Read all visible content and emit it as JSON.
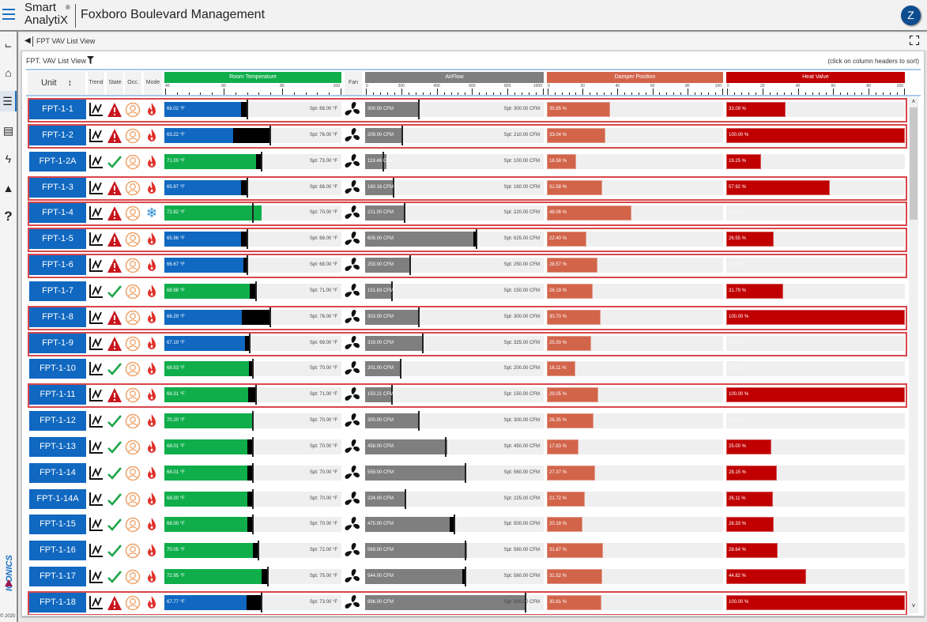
{
  "app": {
    "logo_line1": "Smart",
    "logo_reg": "®",
    "logo_line2": "AnalytiX",
    "title": "Foxboro Boulevard Management",
    "avatar": "Z"
  },
  "sidebar": {
    "items": [
      {
        "icon": "hierarchy-icon"
      },
      {
        "icon": "home-icon"
      },
      {
        "icon": "list-icon",
        "selected": true
      },
      {
        "icon": "panel-icon"
      },
      {
        "icon": "lightning-icon"
      },
      {
        "icon": "alarm-icon"
      },
      {
        "icon": "help-icon"
      }
    ],
    "brand": "ICONICS",
    "copyright": "© 2020"
  },
  "breadcrumb": {
    "label": "FPT VAV List View"
  },
  "view": {
    "title": "FPT. VAV List View",
    "sort_hint": "(click on column headers to sort)"
  },
  "columns": {
    "unit": "Unit",
    "trend": "Trend",
    "state": "State",
    "occ": "Occ.",
    "mode": "Mode",
    "room_temp": "Room Temperature",
    "fan": "Fan",
    "airflow": "AirFlow",
    "damper": "Damper Position",
    "heat": "Heat Valve"
  },
  "scales": {
    "room_temp": {
      "min": 40,
      "max": 100,
      "labels": [
        "40",
        "60",
        "80",
        "100"
      ]
    },
    "airflow": {
      "min": 0,
      "max": 1000,
      "labels": [
        "0",
        "200",
        "400",
        "600",
        "800",
        "1000"
      ]
    },
    "damper": {
      "min": 0,
      "max": 100,
      "labels": [
        "0",
        "20",
        "40",
        "60",
        "80",
        "100"
      ]
    },
    "heat": {
      "min": 0,
      "max": 100,
      "labels": [
        "0",
        "20",
        "40",
        "60",
        "80",
        "100"
      ]
    }
  },
  "colors": {
    "cold": "#1068c0",
    "ok": "#0fae4b",
    "airflow": "#7f7f7f",
    "damper": "#d2644a",
    "heat": "#c00000",
    "alarm_border": "#d9474b"
  },
  "rows": [
    {
      "unit": "FPT-1-1",
      "alarm": true,
      "mode": "heat",
      "temp_state": "cold",
      "temp": 66.02,
      "temp_label": "66.02 °F",
      "temp_spt": 68,
      "temp_spt_label": "Spt: 68.00 °F",
      "air": 300,
      "air_label": "300.00 CFM",
      "air_spt": 300,
      "air_spt_label": "Spt: 300.00 CFM",
      "damper": 35.85,
      "damper_label": "35.85 %",
      "heat": 33.09,
      "heat_label": "33.09 %"
    },
    {
      "unit": "FPT-1-2",
      "alarm": true,
      "mode": "heat",
      "temp_state": "cold",
      "temp": 63.22,
      "temp_label": "63.22 °F",
      "temp_spt": 76,
      "temp_spt_label": "Spt: 76.00 °F",
      "air": 209,
      "air_label": "209.00 CFM",
      "air_spt": 210,
      "air_spt_label": "Spt: 210.00 CFM",
      "damper": 33.04,
      "damper_label": "33.04 %",
      "heat": 100,
      "heat_label": "100.00 %"
    },
    {
      "unit": "FPT-1-2A",
      "alarm": false,
      "mode": "heat",
      "temp_state": "ok",
      "temp": 71.0,
      "temp_label": "71.00 °F",
      "temp_spt": 73,
      "temp_spt_label": "Spt: 73.00 °F",
      "air": 119.46,
      "air_label": "119.46 CFM",
      "air_spt": 100,
      "air_spt_label": "Spt: 100.00 CFM",
      "damper": 16.58,
      "damper_label": "16.58 %",
      "heat": 19.25,
      "heat_label": "19.25 %"
    },
    {
      "unit": "FPT-1-3",
      "alarm": true,
      "mode": "heat",
      "temp_state": "cold",
      "temp": 65.97,
      "temp_label": "65.97 °F",
      "temp_spt": 68,
      "temp_spt_label": "Spt: 68.00 °F",
      "air": 160.16,
      "air_label": "160.16 CFM",
      "air_spt": 160,
      "air_spt_label": "Spt: 160.00 CFM",
      "damper": 31.58,
      "damper_label": "31.58 %",
      "heat": 57.92,
      "heat_label": "57.92 %"
    },
    {
      "unit": "FPT-1-4",
      "alarm": true,
      "mode": "cool",
      "temp_state": "ok",
      "temp": 72.82,
      "temp_label": "72.82 °F",
      "temp_spt": 70,
      "temp_spt_label": "Spt: 70.00 °F",
      "air": 221,
      "air_label": "221.00 CFM",
      "air_spt": 220,
      "air_spt_label": "Spt: 220.00 CFM",
      "damper": 48.06,
      "damper_label": "48.06 %",
      "heat": 0,
      "heat_label": "0.00 %"
    },
    {
      "unit": "FPT-1-5",
      "alarm": true,
      "mode": "heat",
      "temp_state": "cold",
      "temp": 65.96,
      "temp_label": "65.96 °F",
      "temp_spt": 68,
      "temp_spt_label": "Spt: 68.00 °F",
      "air": 605,
      "air_label": "605.00 CFM",
      "air_spt": 625,
      "air_spt_label": "Spt: 625.00 CFM",
      "damper": 22.4,
      "damper_label": "22.40 %",
      "heat": 26.55,
      "heat_label": "26.55 %"
    },
    {
      "unit": "FPT-1-6",
      "alarm": true,
      "mode": "heat",
      "temp_state": "cold",
      "temp": 66.67,
      "temp_label": "66.67 °F",
      "temp_spt": 68,
      "temp_spt_label": "Spt: 68.00 °F",
      "air": 253,
      "air_label": "253.00 CFM",
      "air_spt": 250,
      "air_spt_label": "Spt: 250.00 CFM",
      "damper": 28.57,
      "damper_label": "28.57 %",
      "heat": 0,
      "heat_label": "0.00 %"
    },
    {
      "unit": "FPT-1-7",
      "alarm": false,
      "mode": "heat",
      "temp_state": "ok",
      "temp": 68.98,
      "temp_label": "68.98 °F",
      "temp_spt": 71,
      "temp_spt_label": "Spt: 71.00 °F",
      "air": 151.83,
      "air_label": "151.83 CFM",
      "air_spt": 150,
      "air_spt_label": "Spt: 150.00 CFM",
      "damper": 26.19,
      "damper_label": "26.19 %",
      "heat": 31.79,
      "heat_label": "31.79 %"
    },
    {
      "unit": "FPT-1-8",
      "alarm": true,
      "mode": "heat",
      "temp_state": "cold",
      "temp": 66.29,
      "temp_label": "66.29 °F",
      "temp_spt": 76,
      "temp_spt_label": "Spt: 76.00 °F",
      "air": 303,
      "air_label": "303.00 CFM",
      "air_spt": 300,
      "air_spt_label": "Spt: 300.00 CFM",
      "damper": 30.7,
      "damper_label": "30.70 %",
      "heat": 100,
      "heat_label": "100.00 %"
    },
    {
      "unit": "FPT-1-9",
      "alarm": true,
      "mode": "heat",
      "temp_state": "cold",
      "temp": 67.19,
      "temp_label": "67.19 °F",
      "temp_spt": 69,
      "temp_spt_label": "Spt: 69.00 °F",
      "air": 319,
      "air_label": "319.00 CFM",
      "air_spt": 325,
      "air_spt_label": "Spt: 325.00 CFM",
      "damper": 25.0,
      "damper_label": "25.00 %",
      "heat": 0,
      "heat_label": "0.00 %"
    },
    {
      "unit": "FPT-1-10",
      "alarm": false,
      "mode": "heat",
      "temp_state": "ok",
      "temp": 68.53,
      "temp_label": "68.53 °F",
      "temp_spt": 70,
      "temp_spt_label": "Spt: 70.00 °F",
      "air": 201,
      "air_label": "201.00 CFM",
      "air_spt": 200,
      "air_spt_label": "Spt: 200.00 CFM",
      "damper": 16.11,
      "damper_label": "16.11 %",
      "heat": 0,
      "heat_label": "0.00 %"
    },
    {
      "unit": "FPT-1-11",
      "alarm": true,
      "mode": "heat",
      "temp_state": "ok",
      "temp": 68.31,
      "temp_label": "68.31 °F",
      "temp_spt": 71,
      "temp_spt_label": "Spt: 71.00 °F",
      "air": 150.21,
      "air_label": "150.21 CFM",
      "air_spt": 150,
      "air_spt_label": "Spt: 150.00 CFM",
      "damper": 29.05,
      "damper_label": "29.05 %",
      "heat": 100,
      "heat_label": "100.00 %"
    },
    {
      "unit": "FPT-1-12",
      "alarm": false,
      "mode": "heat",
      "temp_state": "ok",
      "temp": 70.2,
      "temp_label": "70.20 °F",
      "temp_spt": 70,
      "temp_spt_label": "Spt: 70.00 °F",
      "air": 300,
      "air_label": "300.00 CFM",
      "air_spt": 300,
      "air_spt_label": "Spt: 300.00 CFM",
      "damper": 26.35,
      "damper_label": "26.35 %",
      "heat": 0,
      "heat_label": "0.00 %"
    },
    {
      "unit": "FPT-1-13",
      "alarm": false,
      "mode": "heat",
      "temp_state": "ok",
      "temp": 68.01,
      "temp_label": "68.01 °F",
      "temp_spt": 70,
      "temp_spt_label": "Spt: 70.00 °F",
      "air": 458,
      "air_label": "458.00 CFM",
      "air_spt": 450,
      "air_spt_label": "Spt: 450.00 CFM",
      "damper": 17.83,
      "damper_label": "17.83 %",
      "heat": 25.0,
      "heat_label": "25.00 %"
    },
    {
      "unit": "FPT-1-14",
      "alarm": false,
      "mode": "heat",
      "temp_state": "ok",
      "temp": 68.01,
      "temp_label": "68.01 °F",
      "temp_spt": 70,
      "temp_spt_label": "Spt: 70.00 °F",
      "air": 559,
      "air_label": "559.00 CFM",
      "air_spt": 560,
      "air_spt_label": "Spt: 560.00 CFM",
      "damper": 27.37,
      "damper_label": "27.37 %",
      "heat": 28.15,
      "heat_label": "28.15 %"
    },
    {
      "unit": "FPT-1-14A",
      "alarm": false,
      "mode": "heat",
      "temp_state": "ok",
      "temp": 68.0,
      "temp_label": "68.00 °F",
      "temp_spt": 70,
      "temp_spt_label": "Spt: 70.00 °F",
      "air": 224,
      "air_label": "224.00 CFM",
      "air_spt": 225,
      "air_spt_label": "Spt: 225.00 CFM",
      "damper": 21.72,
      "damper_label": "21.72 %",
      "heat": 26.11,
      "heat_label": "26.11 %"
    },
    {
      "unit": "FPT-1-15",
      "alarm": false,
      "mode": "heat",
      "temp_state": "ok",
      "temp": 68.0,
      "temp_label": "68.00 °F",
      "temp_spt": 70,
      "temp_spt_label": "Spt: 70.00 °F",
      "air": 475,
      "air_label": "475.00 CFM",
      "air_spt": 500,
      "air_spt_label": "Spt: 500.00 CFM",
      "damper": 20.18,
      "damper_label": "20.18 %",
      "heat": 26.33,
      "heat_label": "26.33 %"
    },
    {
      "unit": "FPT-1-16",
      "alarm": false,
      "mode": "heat",
      "temp_state": "ok",
      "temp": 70.05,
      "temp_label": "70.05 °F",
      "temp_spt": 72,
      "temp_spt_label": "Spt: 72.00 °F",
      "air": 569,
      "air_label": "569.00 CFM",
      "air_spt": 560,
      "air_spt_label": "Spt: 560.00 CFM",
      "damper": 31.87,
      "damper_label": "31.87 %",
      "heat": 28.64,
      "heat_label": "28.64 %"
    },
    {
      "unit": "FPT-1-17",
      "alarm": false,
      "mode": "heat",
      "temp_state": "ok",
      "temp": 72.95,
      "temp_label": "72.95 °F",
      "temp_spt": 75,
      "temp_spt_label": "Spt: 75.00 °F",
      "air": 544,
      "air_label": "544.00 CFM",
      "air_spt": 560,
      "air_spt_label": "Spt: 560.00 CFM",
      "damper": 31.52,
      "damper_label": "31.52 %",
      "heat": 44.82,
      "heat_label": "44.82 %"
    },
    {
      "unit": "FPT-1-18",
      "alarm": true,
      "mode": "heat",
      "temp_state": "cold",
      "temp": 67.77,
      "temp_label": "67.77 °F",
      "temp_spt": 73,
      "temp_spt_label": "Spt: 73.00 °F",
      "air": 896,
      "air_label": "896.00 CFM",
      "air_spt": 900,
      "air_spt_label": "Spt: 900.00 CFM",
      "damper": 30.81,
      "damper_label": "30.81 %",
      "heat": 100,
      "heat_label": "100.00 %"
    }
  ]
}
